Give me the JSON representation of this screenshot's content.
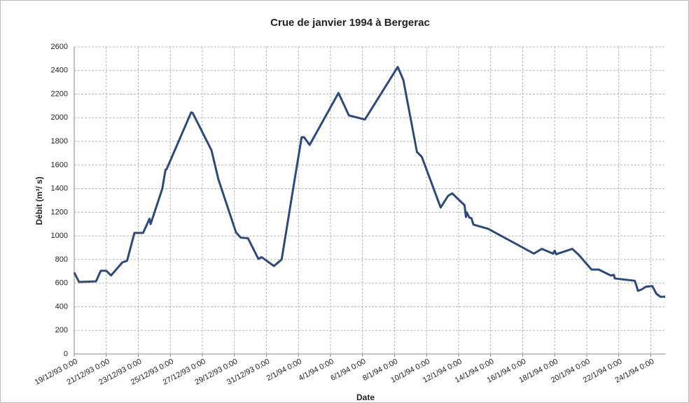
{
  "chart_data": {
    "type": "line",
    "title": "Crue de janvier 1994 à Bergerac",
    "x_label": "Date",
    "y_label": "Débit (m³/ s)",
    "x": [
      0,
      0.3,
      1.36,
      1.66,
      2.0,
      2.3,
      3.0,
      3.3,
      3.76,
      4.3,
      4.7,
      4.77,
      5.5,
      5.7,
      5.77,
      7.3,
      7.4,
      8.57,
      9.0,
      10.1,
      10.4,
      10.85,
      11.5,
      11.7,
      12.47,
      12.95,
      13.0,
      13.7,
      14.2,
      14.35,
      14.7,
      16.5,
      17.15,
      18.15,
      20.2,
      20.55,
      21.4,
      21.7,
      22.88,
      23.35,
      23.6,
      24.37,
      24.46,
      24.5,
      24.67,
      24.8,
      24.93,
      25.85,
      28.7,
      29.2,
      29.9,
      30.0,
      30.1,
      31.1,
      31.5,
      32.3,
      32.75,
      33.5,
      33.7,
      33.75,
      35.0,
      35.1,
      35.2,
      35.4,
      35.7,
      36.1,
      36.35,
      36.6,
      36.9
    ],
    "series": [
      {
        "name": "Débit",
        "color": "#2c4a7a",
        "values": [
          690,
          610,
          615,
          705,
          705,
          665,
          775,
          790,
          1025,
          1025,
          1145,
          1100,
          1400,
          1560,
          1565,
          2045,
          2040,
          1725,
          1480,
          1030,
          985,
          980,
          805,
          820,
          745,
          800,
          840,
          1425,
          1835,
          1835,
          1770,
          2210,
          2020,
          1985,
          2430,
          2320,
          1710,
          1670,
          1240,
          1340,
          1360,
          1260,
          1160,
          1200,
          1155,
          1150,
          1095,
          1060,
          850,
          890,
          850,
          875,
          845,
          890,
          840,
          715,
          715,
          665,
          670,
          640,
          620,
          580,
          535,
          545,
          570,
          575,
          510,
          485,
          485
        ]
      }
    ],
    "xlim": [
      0,
      36.9
    ],
    "xticks": [
      {
        "value": 0,
        "label": "19/12/93 0:00"
      },
      {
        "value": 2,
        "label": "21/12/93 0:00"
      },
      {
        "value": 4,
        "label": "23/12/93 0:00"
      },
      {
        "value": 6,
        "label": "25/12/93 0:00"
      },
      {
        "value": 8,
        "label": "27/12/93 0:00"
      },
      {
        "value": 10,
        "label": "29/12/93 0:00"
      },
      {
        "value": 12,
        "label": "31/12/93 0:00"
      },
      {
        "value": 14,
        "label": "2/1/94 0:00"
      },
      {
        "value": 16,
        "label": "4/1/94 0:00"
      },
      {
        "value": 18,
        "label": "6/1/94 0:00"
      },
      {
        "value": 20,
        "label": "8/1/94 0:00"
      },
      {
        "value": 22,
        "label": "10/1/94 0:00"
      },
      {
        "value": 24,
        "label": "12/1/94 0:00"
      },
      {
        "value": 26,
        "label": "14/1/94 0:00"
      },
      {
        "value": 28,
        "label": "16/1/94 0:00"
      },
      {
        "value": 30,
        "label": "18/1/94 0:00"
      },
      {
        "value": 32,
        "label": "20/1/94 0:00"
      },
      {
        "value": 34,
        "label": "22/1/94 0:00"
      },
      {
        "value": 36,
        "label": "24/1/94 0:00"
      }
    ],
    "ylim": [
      0,
      2600
    ],
    "yticks": [
      0,
      200,
      400,
      600,
      800,
      1000,
      1200,
      1400,
      1600,
      1800,
      2000,
      2200,
      2400,
      2600
    ],
    "grid": true
  }
}
